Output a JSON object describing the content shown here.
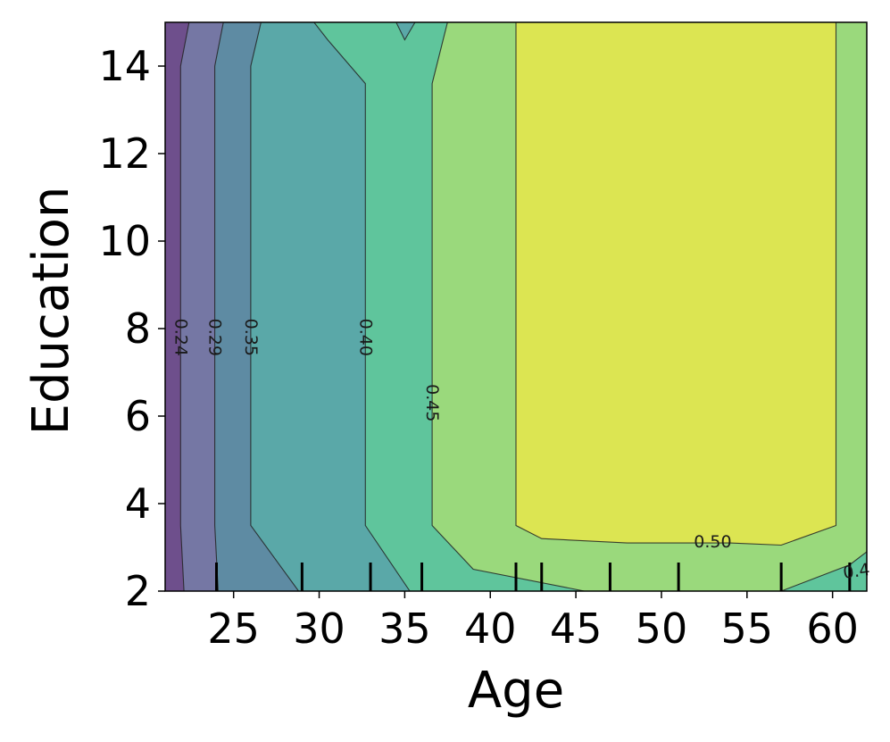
{
  "chart_data": {
    "type": "contour",
    "xlabel": "Age",
    "ylabel": "Education",
    "xlim": [
      21,
      62
    ],
    "ylim": [
      2,
      15
    ],
    "xticks": [
      25,
      30,
      35,
      40,
      45,
      50,
      55,
      60
    ],
    "yticks": [
      2,
      4,
      6,
      8,
      10,
      12,
      14
    ],
    "rug_x": [
      24,
      29,
      33,
      36,
      41.5,
      43,
      47,
      51,
      57,
      61
    ],
    "levels": [
      0.24,
      0.29,
      0.35,
      0.4,
      0.45,
      0.5
    ],
    "level_labels": [
      "0.24",
      "0.29",
      "0.35",
      "0.40",
      "0.45",
      "0.50",
      "0.4"
    ],
    "fill_colors": {
      "below_0.24": "#6e4f8c",
      "0.24-0.29": "#7577a4",
      "0.29-0.35": "#5e8ba3",
      "0.35-0.40": "#5aa8a8",
      "0.40-0.45": "#5fc59c",
      "0.45-0.50": "#9ad97c",
      "above_0.50": "#dce552"
    },
    "contours": [
      {
        "level": 0.24,
        "points": [
          [
            22.1,
            2.0
          ],
          [
            21.9,
            3.5
          ],
          [
            21.9,
            14.0
          ],
          [
            22.4,
            15.0
          ]
        ]
      },
      {
        "level": 0.29,
        "points": [
          [
            24.1,
            2.0
          ],
          [
            23.9,
            3.5
          ],
          [
            23.9,
            14.0
          ],
          [
            24.4,
            15.0
          ]
        ]
      },
      {
        "level": 0.35,
        "points": [
          [
            28.8,
            2.0
          ],
          [
            26.0,
            3.5
          ],
          [
            26.0,
            14.0
          ],
          [
            26.6,
            15.0
          ]
        ]
      },
      {
        "level": 0.4,
        "points": [
          [
            35.3,
            2.0
          ],
          [
            32.7,
            3.5
          ],
          [
            32.7,
            13.6
          ],
          [
            30.5,
            14.6
          ],
          [
            29.7,
            15.0
          ]
        ]
      },
      {
        "level": 0.45,
        "points": [
          [
            45.5,
            2.0
          ],
          [
            39.0,
            2.5
          ],
          [
            36.6,
            3.5
          ],
          [
            36.6,
            13.6
          ],
          [
            37.5,
            15.0
          ]
        ]
      },
      {
        "level": 0.45,
        "points": [
          [
            34.5,
            15.0
          ],
          [
            35.0,
            14.6
          ],
          [
            35.6,
            15.0
          ]
        ]
      },
      {
        "level": 0.45,
        "points": [
          [
            57.0,
            2.0
          ],
          [
            61.0,
            2.6
          ],
          [
            62.0,
            2.9
          ]
        ]
      },
      {
        "level": 0.5,
        "points": [
          [
            41.5,
            15.0
          ],
          [
            41.5,
            3.5
          ],
          [
            43.0,
            3.2
          ],
          [
            48.0,
            3.1
          ],
          [
            54.0,
            3.1
          ],
          [
            57.0,
            3.05
          ],
          [
            60.2,
            3.5
          ],
          [
            60.2,
            15.0
          ]
        ]
      }
    ]
  }
}
